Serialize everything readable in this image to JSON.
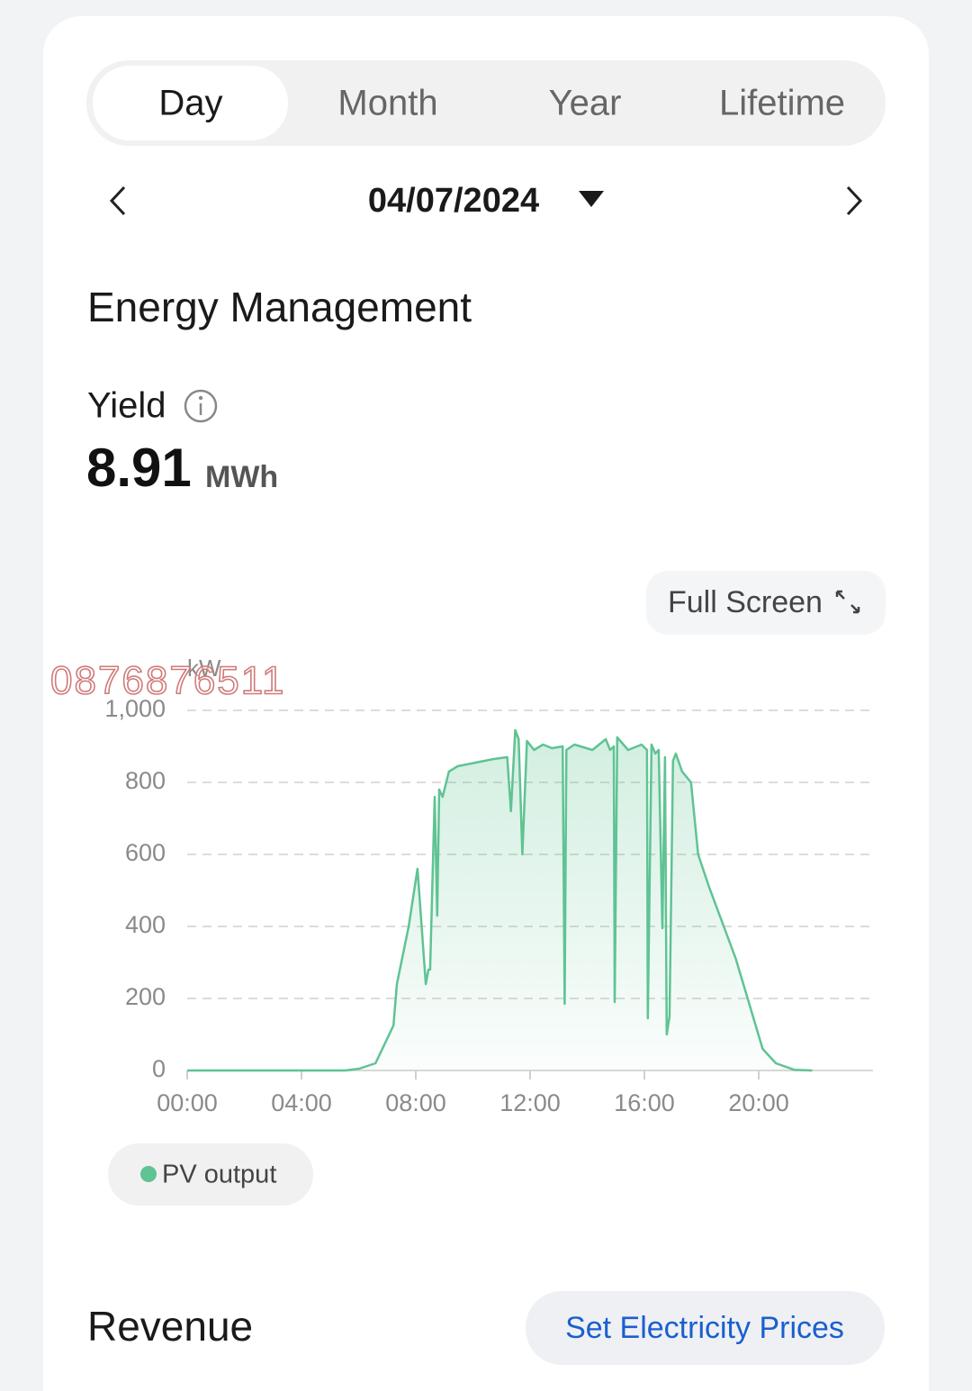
{
  "tabs": [
    "Day",
    "Month",
    "Year",
    "Lifetime"
  ],
  "date": "04/07/2024",
  "section_title": "Energy Management",
  "yield": {
    "label": "Yield",
    "value": "8.91",
    "unit": "MWh"
  },
  "full_screen": "Full Screen",
  "watermark": "0876876511",
  "revenue": {
    "title": "Revenue",
    "button": "Set Electricity Prices"
  },
  "chart_data": {
    "type": "area",
    "ylabel": "kW",
    "x": [
      0,
      5.52,
      6.02,
      6.59,
      7.22,
      7.34,
      7.75,
      8.06,
      8.35,
      8.44,
      8.5,
      8.66,
      8.75,
      8.82,
      8.94,
      9.16,
      9.47,
      10.1,
      10.73,
      11.2,
      11.33,
      11.48,
      11.6,
      11.73,
      11.89,
      12.14,
      12.45,
      12.77,
      13.14,
      13.21,
      13.27,
      13.55,
      14.18,
      14.65,
      14.8,
      14.93,
      14.96,
      15.05,
      15.43,
      15.9,
      16.09,
      16.12,
      16.25,
      16.38,
      16.5,
      16.63,
      16.72,
      16.78,
      16.88,
      17.0,
      17.1,
      17.32,
      17.63,
      17.88,
      18.26,
      19.2,
      20.14,
      20.6,
      21.24,
      21.87
    ],
    "series": [
      {
        "name": "PV output",
        "color": "#5fc393",
        "values": [
          0,
          0,
          5,
          20,
          125,
          240,
          400,
          560,
          240,
          280,
          280,
          760,
          430,
          780,
          760,
          830,
          845,
          855,
          865,
          870,
          720,
          945,
          920,
          600,
          915,
          890,
          905,
          895,
          900,
          185,
          890,
          905,
          890,
          920,
          890,
          900,
          190,
          925,
          890,
          905,
          890,
          145,
          905,
          880,
          890,
          395,
          870,
          100,
          150,
          860,
          880,
          830,
          800,
          600,
          510,
          310,
          60,
          20,
          2,
          0
        ]
      }
    ],
    "xlim": [
      0,
      24
    ],
    "xticks": [
      {
        "value": 0,
        "label": "00:00"
      },
      {
        "value": 4,
        "label": "04:00"
      },
      {
        "value": 8,
        "label": "08:00"
      },
      {
        "value": 12,
        "label": "12:00"
      },
      {
        "value": 16,
        "label": "16:00"
      },
      {
        "value": 20,
        "label": "20:00"
      }
    ],
    "ylim": [
      0,
      1000
    ],
    "yticks": [
      0,
      200,
      400,
      600,
      800,
      {
        "value": 1000,
        "label": "1,000"
      }
    ],
    "grid": true
  }
}
